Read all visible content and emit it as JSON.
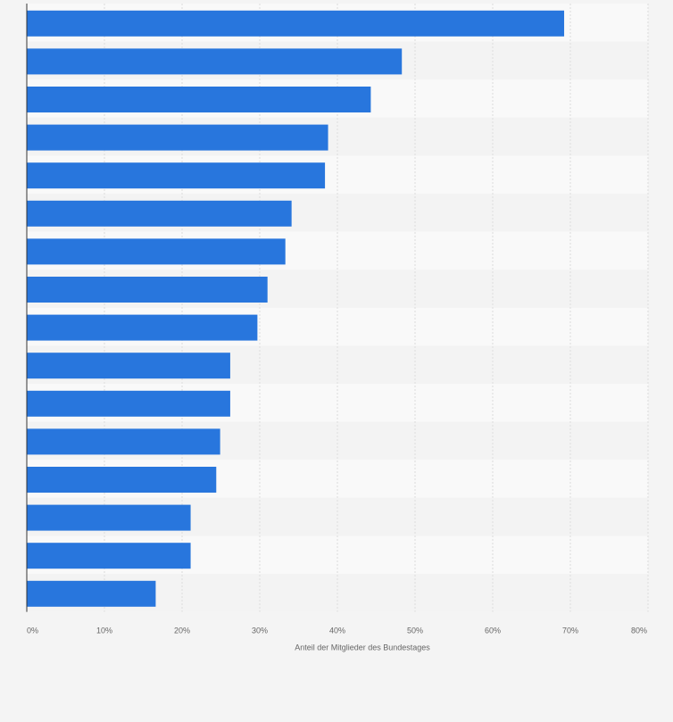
{
  "colors": {
    "background": "#f4f4f4",
    "band_light": "#f9f9f9",
    "band_dark": "#f3f3f3",
    "bar": "#2876dd",
    "gridline": "#dcdcdc",
    "axis_line": "#333333",
    "text": "#666666"
  },
  "chart_data": {
    "type": "bar",
    "orientation": "horizontal",
    "values": [
      69.2,
      48.3,
      44.3,
      38.8,
      38.4,
      34.1,
      33.3,
      31.0,
      29.7,
      26.2,
      26.2,
      24.9,
      24.4,
      21.1,
      21.1,
      16.6
    ],
    "xlabel": "Anteil der Mitglieder des Bundestages",
    "ylabel": "",
    "xlim": [
      0,
      80
    ],
    "x_ticks": [
      0,
      10,
      20,
      30,
      40,
      50,
      60,
      70,
      80
    ],
    "x_tick_labels": [
      "0%",
      "10%",
      "20%",
      "30%",
      "40%",
      "50%",
      "60%",
      "70%",
      "80%"
    ],
    "grid": true,
    "legend": "none"
  }
}
